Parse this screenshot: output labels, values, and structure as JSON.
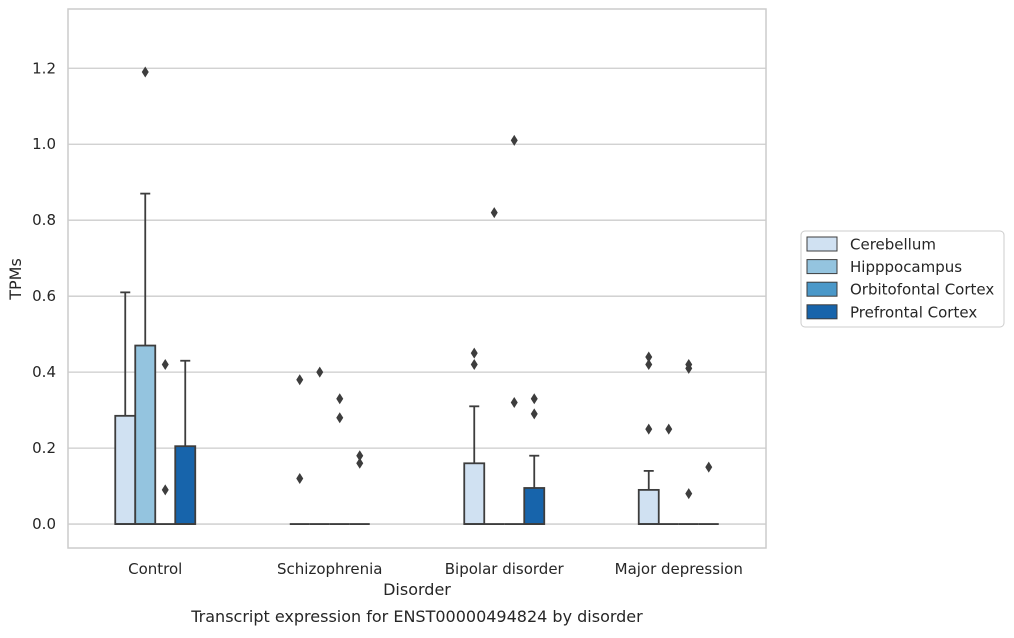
{
  "chart_data": {
    "type": "box",
    "title": "",
    "caption": "Transcript expression for ENST00000494824 by disorder",
    "xlabel": "Disorder",
    "ylabel": "TPMs",
    "ylim": [
      -0.063,
      1.356
    ],
    "yticks": [
      "0.0",
      "0.2",
      "0.4",
      "0.6",
      "0.8",
      "1.0",
      "1.2"
    ],
    "ytick_values": [
      0,
      0.2,
      0.4,
      0.6,
      0.8,
      1.0,
      1.2
    ],
    "grid": "horizontal",
    "legend_position": "right",
    "categories": [
      "Control",
      "Schizophrenia",
      "Bipolar disorder",
      "Major depression"
    ],
    "series": [
      {
        "name": "Cerebellum",
        "color": "#d0e1f2",
        "boxes": [
          {
            "q1": 0,
            "median": 0,
            "q3": 0.285,
            "whisker_low": 0,
            "whisker_high": 0.61,
            "outliers": []
          },
          {
            "q1": 0,
            "median": 0,
            "q3": 0,
            "whisker_low": 0,
            "whisker_high": 0,
            "outliers": [
              0.12,
              0.38
            ]
          },
          {
            "q1": 0,
            "median": 0,
            "q3": 0.16,
            "whisker_low": 0,
            "whisker_high": 0.31,
            "outliers": [
              0.42,
              0.45
            ]
          },
          {
            "q1": 0,
            "median": 0,
            "q3": 0.09,
            "whisker_low": 0,
            "whisker_high": 0.14,
            "outliers": [
              0.25,
              0.42,
              0.44
            ]
          }
        ]
      },
      {
        "name": "Hipppocampus",
        "color": "#94c4df",
        "boxes": [
          {
            "q1": 0,
            "median": 0,
            "q3": 0.47,
            "whisker_low": 0,
            "whisker_high": 0.87,
            "outliers": [
              1.19
            ]
          },
          {
            "q1": 0,
            "median": 0,
            "q3": 0,
            "whisker_low": 0,
            "whisker_high": 0,
            "outliers": [
              0.4
            ]
          },
          {
            "q1": 0,
            "median": 0,
            "q3": 0,
            "whisker_low": 0,
            "whisker_high": 0,
            "outliers": [
              0.82
            ]
          },
          {
            "q1": 0,
            "median": 0,
            "q3": 0,
            "whisker_low": 0,
            "whisker_high": 0,
            "outliers": [
              0.25
            ]
          }
        ]
      },
      {
        "name": "Orbitofontal Cortex",
        "color": "#4a98c9",
        "boxes": [
          {
            "q1": 0,
            "median": 0,
            "q3": 0,
            "whisker_low": 0,
            "whisker_high": 0,
            "outliers": [
              0.09,
              0.42
            ]
          },
          {
            "q1": 0,
            "median": 0,
            "q3": 0,
            "whisker_low": 0,
            "whisker_high": 0,
            "outliers": [
              0.28,
              0.33
            ]
          },
          {
            "q1": 0,
            "median": 0,
            "q3": 0,
            "whisker_low": 0,
            "whisker_high": 0,
            "outliers": [
              0.32,
              1.01
            ]
          },
          {
            "q1": 0,
            "median": 0,
            "q3": 0,
            "whisker_low": 0,
            "whisker_high": 0,
            "outliers": [
              0.08,
              0.41,
              0.42
            ]
          }
        ]
      },
      {
        "name": "Prefrontal Cortex",
        "color": "#1764ab",
        "boxes": [
          {
            "q1": 0,
            "median": 0,
            "q3": 0.205,
            "whisker_low": 0,
            "whisker_high": 0.43,
            "outliers": []
          },
          {
            "q1": 0,
            "median": 0,
            "q3": 0,
            "whisker_low": 0,
            "whisker_high": 0,
            "outliers": [
              0.16,
              0.18
            ]
          },
          {
            "q1": 0,
            "median": 0,
            "q3": 0.095,
            "whisker_low": 0,
            "whisker_high": 0.18,
            "outliers": [
              0.29,
              0.33
            ]
          },
          {
            "q1": 0,
            "median": 0,
            "q3": 0,
            "whisker_low": 0,
            "whisker_high": 0,
            "outliers": [
              0.15
            ]
          }
        ]
      }
    ]
  }
}
